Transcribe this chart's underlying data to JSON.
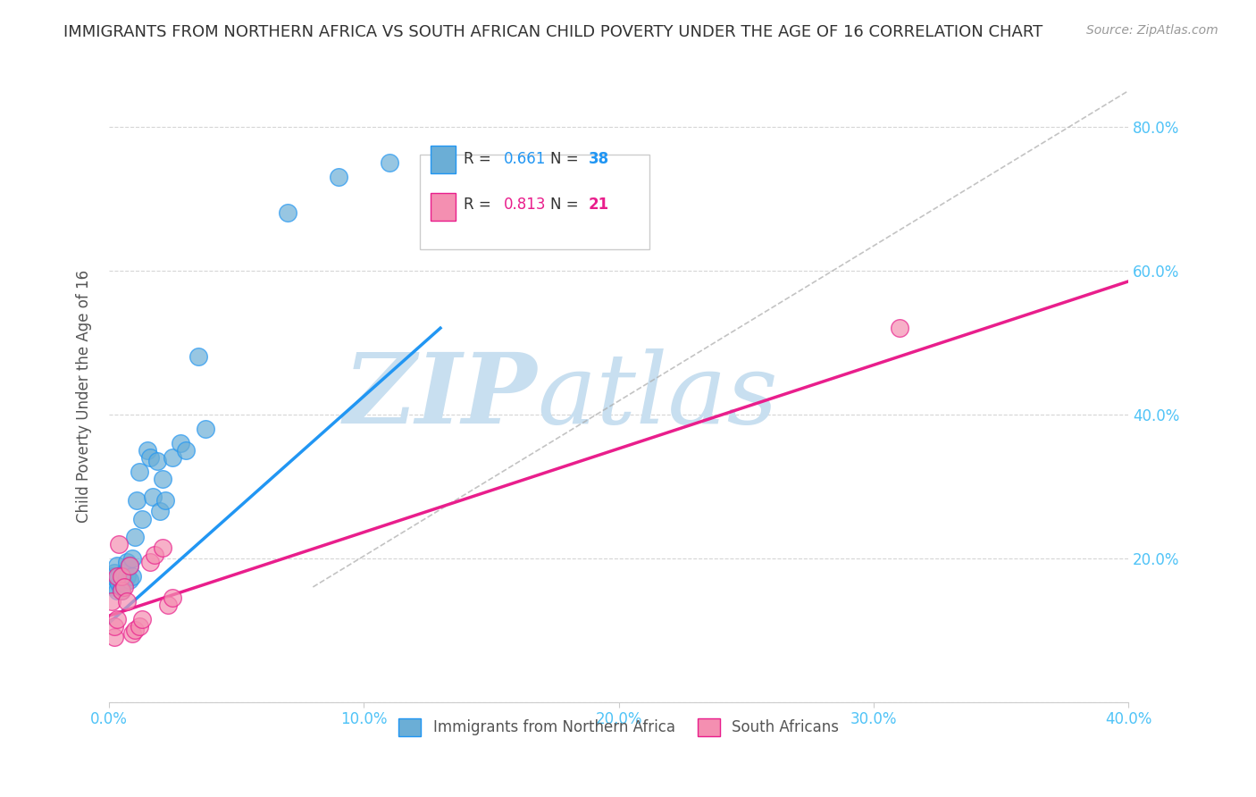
{
  "title": "IMMIGRANTS FROM NORTHERN AFRICA VS SOUTH AFRICAN CHILD POVERTY UNDER THE AGE OF 16 CORRELATION CHART",
  "source": "Source: ZipAtlas.com",
  "ylabel": "Child Poverty Under the Age of 16",
  "yticks": [
    0.0,
    0.2,
    0.4,
    0.6,
    0.8
  ],
  "ytick_labels": [
    "",
    "20.0%",
    "40.0%",
    "60.0%",
    "80.0%"
  ],
  "xticks": [
    0.0,
    0.1,
    0.2,
    0.3,
    0.4
  ],
  "xtick_labels": [
    "0.0%",
    "10.0%",
    "20.0%",
    "30.0%",
    "40.0%"
  ],
  "legend_blue_r": "0.661",
  "legend_blue_n": "38",
  "legend_pink_r": "0.813",
  "legend_pink_n": "21",
  "legend_label_blue": "Immigrants from Northern Africa",
  "legend_label_pink": "South Africans",
  "blue_color": "#6baed6",
  "pink_color": "#f48fb1",
  "blue_line_color": "#2196F3",
  "pink_line_color": "#e91e8c",
  "axis_color": "#4fc3f7",
  "watermark_zip": "ZIP",
  "watermark_atlas": "atlas",
  "watermark_color": "#c8dff0",
  "blue_dots_x": [
    0.001,
    0.002,
    0.002,
    0.003,
    0.003,
    0.003,
    0.004,
    0.004,
    0.005,
    0.005,
    0.005,
    0.006,
    0.006,
    0.007,
    0.007,
    0.008,
    0.008,
    0.009,
    0.009,
    0.01,
    0.011,
    0.012,
    0.013,
    0.015,
    0.016,
    0.017,
    0.019,
    0.02,
    0.021,
    0.022,
    0.025,
    0.028,
    0.03,
    0.035,
    0.038,
    0.07,
    0.09,
    0.11
  ],
  "blue_dots_y": [
    0.175,
    0.16,
    0.18,
    0.155,
    0.17,
    0.19,
    0.165,
    0.175,
    0.155,
    0.16,
    0.17,
    0.18,
    0.165,
    0.175,
    0.195,
    0.17,
    0.19,
    0.2,
    0.175,
    0.23,
    0.28,
    0.32,
    0.255,
    0.35,
    0.34,
    0.285,
    0.335,
    0.265,
    0.31,
    0.28,
    0.34,
    0.36,
    0.35,
    0.48,
    0.38,
    0.68,
    0.73,
    0.75
  ],
  "pink_dots_x": [
    0.001,
    0.002,
    0.002,
    0.003,
    0.003,
    0.004,
    0.005,
    0.005,
    0.006,
    0.007,
    0.008,
    0.009,
    0.01,
    0.012,
    0.013,
    0.016,
    0.018,
    0.021,
    0.023,
    0.025,
    0.31
  ],
  "pink_dots_y": [
    0.14,
    0.09,
    0.105,
    0.115,
    0.175,
    0.22,
    0.155,
    0.175,
    0.16,
    0.14,
    0.19,
    0.095,
    0.1,
    0.105,
    0.115,
    0.195,
    0.205,
    0.215,
    0.135,
    0.145,
    0.52
  ],
  "blue_line_x": [
    0.0,
    0.13
  ],
  "blue_line_y": [
    0.11,
    0.52
  ],
  "pink_line_x": [
    0.0,
    0.4
  ],
  "pink_line_y": [
    0.12,
    0.585
  ],
  "gray_line_x": [
    0.08,
    0.4
  ],
  "gray_line_y": [
    0.16,
    0.85
  ],
  "xmin": 0.0,
  "xmax": 0.4,
  "ymin": 0.0,
  "ymax": 0.85,
  "dot_size": 200
}
